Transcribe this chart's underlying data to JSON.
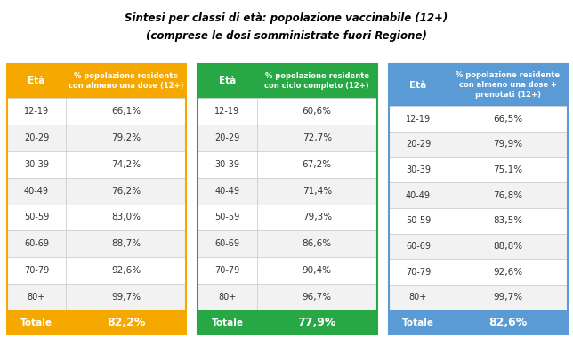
{
  "title_line1": "Sintesi per classi di età: popolazione vaccinabile (12+)",
  "title_line2": "(comprese le dosi somministrate fuori Regione)",
  "age_groups": [
    "12-19",
    "20-29",
    "30-39",
    "40-49",
    "50-59",
    "60-69",
    "70-79",
    "80+"
  ],
  "table1": {
    "header_col1": "Età",
    "header_col2": "% popolazione residente\ncon almeno una dose (12+)",
    "values": [
      "66,1%",
      "79,2%",
      "74,2%",
      "76,2%",
      "83,0%",
      "88,7%",
      "92,6%",
      "99,7%"
    ],
    "total_label": "Totale",
    "total_value": "82,2%",
    "header_color": "#F5A800",
    "total_color": "#F5A800",
    "border_color": "#F5A800"
  },
  "table2": {
    "header_col1": "Età",
    "header_col2": "% popolazione residente\ncon ciclo completo (12+)",
    "values": [
      "60,6%",
      "72,7%",
      "67,2%",
      "71,4%",
      "79,3%",
      "86,6%",
      "90,4%",
      "96,7%"
    ],
    "total_label": "Totale",
    "total_value": "77,9%",
    "header_color": "#27A844",
    "total_color": "#27A844",
    "border_color": "#27A844"
  },
  "table3": {
    "header_col1": "Età",
    "header_col2": "% popolazione residente\ncon almeno una dose +\nprenotati (12+)",
    "values": [
      "66,5%",
      "79,9%",
      "75,1%",
      "76,8%",
      "83,5%",
      "88,8%",
      "92,6%",
      "99,7%"
    ],
    "total_label": "Totale",
    "total_value": "82,6%",
    "header_color": "#5B9BD5",
    "total_color": "#5B9BD5",
    "border_color": "#5B9BD5"
  },
  "row_bg_colors": [
    "#FFFFFF",
    "#F2F2F2"
  ],
  "text_color_header": "#FFFFFF",
  "text_color_body": "#333333",
  "text_color_total": "#FFFFFF",
  "background_color": "#FFFFFF",
  "figsize": [
    6.44,
    3.8
  ],
  "dpi": 100
}
